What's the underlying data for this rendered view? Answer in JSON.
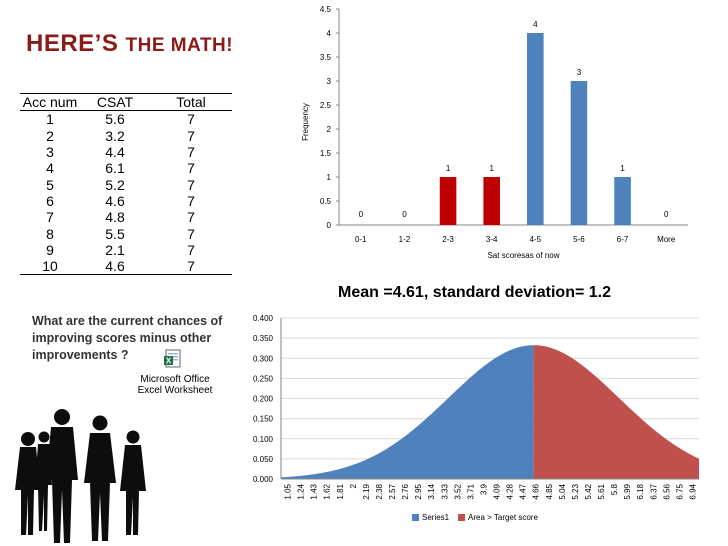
{
  "slide": {
    "title_first": "HERE’S",
    "title_rest": "THE MATH!",
    "question": "What are the current chances of improving scores minus other improvements  ?",
    "embedded_object": {
      "line1": "Microsoft Office",
      "line2": "Excel Worksheet",
      "icon": "excel-icon"
    }
  },
  "table": {
    "headers": [
      "Acc num",
      "CSAT",
      "Total"
    ],
    "rows": [
      [
        "1",
        "5.6",
        "7"
      ],
      [
        "2",
        "3.2",
        "7"
      ],
      [
        "3",
        "4.4",
        "7"
      ],
      [
        "4",
        "6.1",
        "7"
      ],
      [
        "5",
        "5.2",
        "7"
      ],
      [
        "6",
        "4.6",
        "7"
      ],
      [
        "7",
        "4.8",
        "7"
      ],
      [
        "8",
        "5.5",
        "7"
      ],
      [
        "9",
        "2.1",
        "7"
      ],
      [
        "10",
        "4.6",
        "7"
      ]
    ]
  },
  "chart_data": [
    {
      "type": "bar",
      "title": "",
      "xlabel": "Sat scoresas of now",
      "ylabel": "Frequency",
      "ylim": [
        0,
        4.5
      ],
      "yticks": [
        "0",
        "0.5",
        "1",
        "1.5",
        "2",
        "2.5",
        "3",
        "3.5",
        "4",
        "4.5"
      ],
      "categories": [
        "0-1",
        "1-2",
        "2-3",
        "3-4",
        "4-5",
        "5-6",
        "6-7",
        "More"
      ],
      "values": [
        0,
        0,
        1,
        1,
        4,
        3,
        1,
        0
      ],
      "data_labels": [
        "0",
        "0",
        "1",
        "1",
        "4",
        "3",
        "1",
        "0"
      ],
      "bar_colors": [
        "#4f81bd",
        "#4f81bd",
        "#c00000",
        "#c00000",
        "#4f81bd",
        "#4f81bd",
        "#4f81bd",
        "#4f81bd"
      ],
      "grid": false
    },
    {
      "type": "area",
      "title": "Mean =4.61, standard deviation= 1.2",
      "mean": 4.61,
      "sd": 1.2,
      "ylim": [
        0,
        0.4
      ],
      "yticks": [
        "0.000",
        "0.050",
        "0.100",
        "0.150",
        "0.200",
        "0.250",
        "0.300",
        "0.350",
        "0.400"
      ],
      "x_ticks": [
        "1.05",
        "1.24",
        "1.43",
        "1.62",
        "1.81",
        "2",
        "2.19",
        "2.38",
        "2.57",
        "2.76",
        "2.95",
        "3.14",
        "3.33",
        "3.52",
        "3.71",
        "3.9",
        "4.09",
        "4.28",
        "4.47",
        "4.66",
        "4.85",
        "5.04",
        "5.23",
        "5.42",
        "5.61",
        "5.8",
        "5.99",
        "6.18",
        "6.37",
        "6.56",
        "6.75",
        "6.94"
      ],
      "x_range": [
        1.05,
        6.94
      ],
      "split_at": 4.61,
      "series": [
        {
          "name": "Series1",
          "color": "#4f81bd"
        },
        {
          "name": "Area > Target score",
          "color": "#c0504d"
        }
      ],
      "legend": "bottom",
      "grid": true
    }
  ],
  "decor": {
    "silhouette": "business-people-silhouette"
  }
}
